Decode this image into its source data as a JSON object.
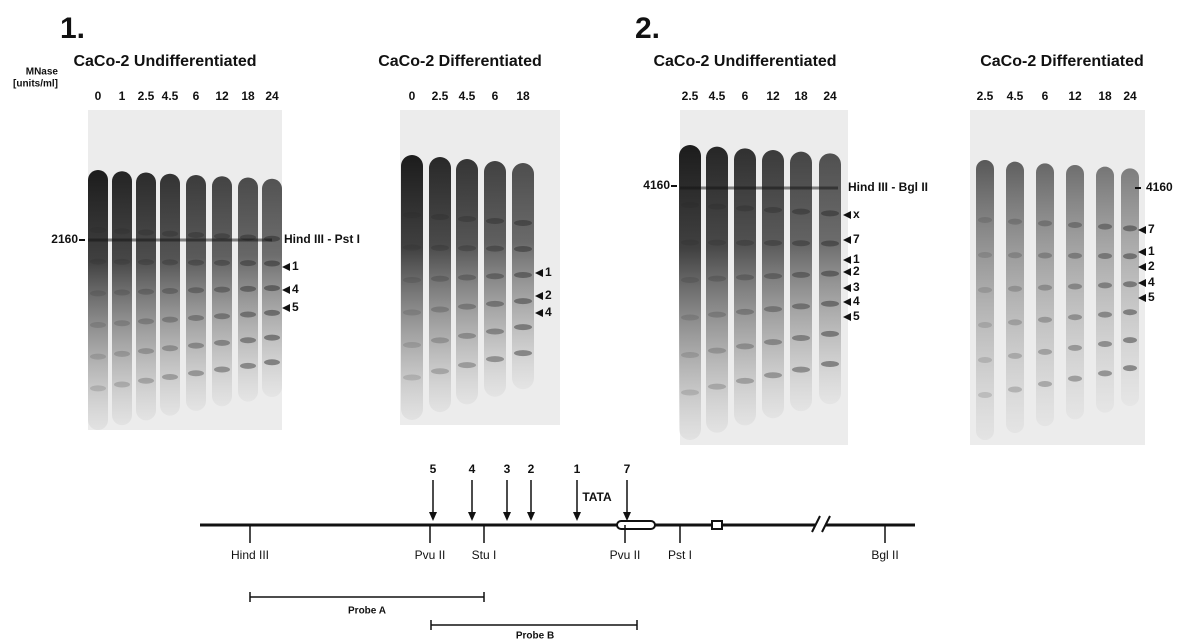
{
  "panels": [
    {
      "number": "1.",
      "unit_label": [
        "MNase",
        "[units/ml]"
      ],
      "gels": [
        {
          "title": "CaCo-2 Undifferentiated",
          "lanes": [
            "0",
            "1",
            "2.5",
            "4.5",
            "6",
            "12",
            "18",
            "24"
          ],
          "size_marker": "2160",
          "fragment": "Hind III - Pst I",
          "bands": [
            "1",
            "4",
            "5"
          ]
        },
        {
          "title": "CaCo-2 Differentiated",
          "lanes": [
            "0",
            "2.5",
            "4.5",
            "6",
            "18"
          ],
          "bands": [
            "1",
            "2",
            "4"
          ]
        }
      ]
    },
    {
      "number": "2.",
      "gels": [
        {
          "title": "CaCo-2 Undifferentiated",
          "lanes": [
            "2.5",
            "4.5",
            "6",
            "12",
            "18",
            "24"
          ],
          "size_marker": "4160",
          "fragment": "Hind III - Bgl II",
          "bands": [
            "x",
            "7",
            "1",
            "2",
            "3",
            "4",
            "5"
          ]
        },
        {
          "title": "CaCo-2 Differentiated",
          "lanes": [
            "2.5",
            "4.5",
            "6",
            "12",
            "18",
            "24"
          ],
          "size_marker": "4160",
          "bands": [
            "7",
            "1",
            "2",
            "4",
            "5"
          ]
        }
      ]
    }
  ],
  "map": {
    "arrows": [
      "5",
      "4",
      "3",
      "2",
      "1",
      "7"
    ],
    "tata": "TATA",
    "sites": [
      "Hind III",
      "Pvu II",
      "Stu I",
      "Pvu II",
      "Pst I",
      "Bgl II"
    ],
    "probes": [
      "Probe A",
      "Probe B"
    ]
  }
}
